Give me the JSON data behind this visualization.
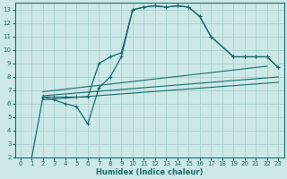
{
  "xlabel": "Humidex (Indice chaleur)",
  "background_color": "#cce8e8",
  "grid_color": "#aad0d0",
  "line_color": "#1a6b6b",
  "xlim": [
    -0.5,
    23.5
  ],
  "ylim": [
    2,
    13.5
  ],
  "xticks": [
    0,
    1,
    2,
    3,
    4,
    5,
    6,
    7,
    8,
    9,
    10,
    11,
    12,
    13,
    14,
    15,
    16,
    17,
    18,
    19,
    20,
    21,
    22,
    23
  ],
  "yticks": [
    2,
    3,
    4,
    5,
    6,
    7,
    8,
    9,
    10,
    11,
    12,
    13
  ],
  "curve_main_x": [
    1,
    2,
    3,
    4,
    5,
    6,
    7,
    8,
    9,
    10,
    11,
    12,
    13,
    14,
    15,
    16,
    17,
    19,
    20,
    21,
    22,
    23
  ],
  "curve_main_y": [
    2,
    6.5,
    6.5,
    6.5,
    6.5,
    6.5,
    9.0,
    9.5,
    9.8,
    13.0,
    13.2,
    13.3,
    13.2,
    13.3,
    13.2,
    12.5,
    11.0,
    9.5,
    9.5,
    9.5,
    9.5,
    8.7
  ],
  "curve_valley_x": [
    2,
    3,
    4,
    5,
    6,
    7,
    8,
    9,
    10,
    11,
    12,
    13,
    14,
    15,
    16,
    17,
    19,
    20,
    21,
    22,
    23
  ],
  "curve_valley_y": [
    6.5,
    6.3,
    6.0,
    5.8,
    4.5,
    7.2,
    8.0,
    9.5,
    13.0,
    13.2,
    13.3,
    13.2,
    13.3,
    13.2,
    12.5,
    11.0,
    9.5,
    9.5,
    9.5,
    9.5,
    8.7
  ],
  "line1_x": [
    2,
    23
  ],
  "line1_y": [
    6.3,
    7.6
  ],
  "line2_x": [
    2,
    23
  ],
  "line2_y": [
    6.6,
    8.0
  ],
  "line3_x": [
    2,
    22
  ],
  "line3_y": [
    6.9,
    8.8
  ]
}
